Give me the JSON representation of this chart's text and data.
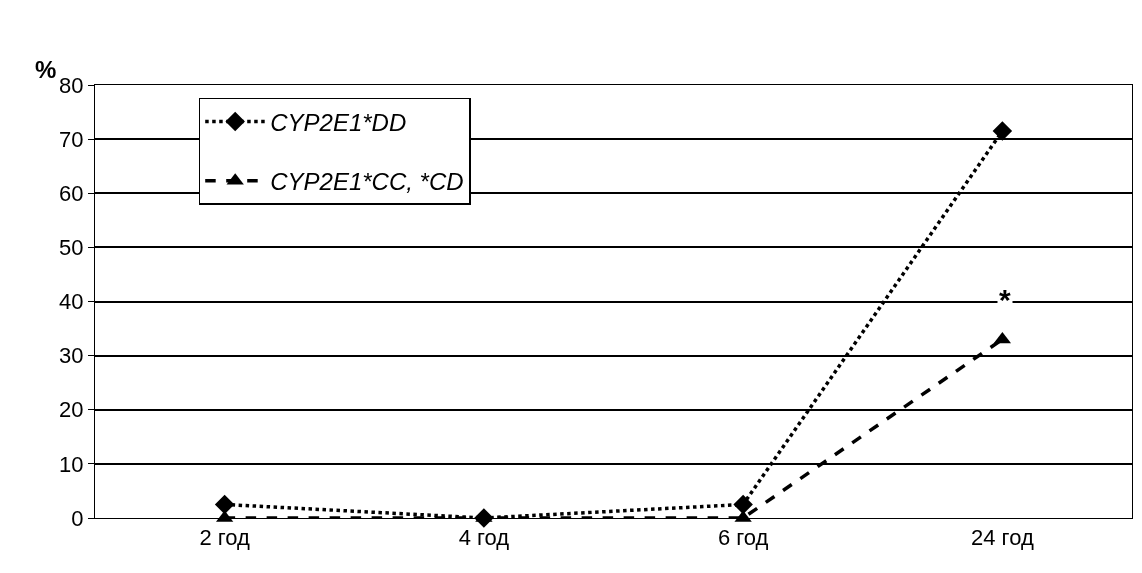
{
  "chart_data": {
    "type": "line",
    "ylabel": "%",
    "categories": [
      "2 год",
      "4 год",
      "6 год",
      "24 год"
    ],
    "series": [
      {
        "name": "CYP2E1*DD",
        "color": "#000000",
        "values": [
          2.5,
          0,
          2.5,
          71.5
        ],
        "marker": "diamond",
        "line_style": "dotted"
      },
      {
        "name": "CYP2E1*CC, *CD",
        "color": "#000000",
        "values": [
          0,
          0,
          0,
          33
        ],
        "marker": "triangle",
        "line_style": "dashed"
      }
    ],
    "ylim": [
      0,
      80
    ],
    "yticks": [
      0,
      10,
      20,
      30,
      40,
      50,
      60,
      70,
      80
    ],
    "grid": "y",
    "legend": "top left",
    "annotations": [
      "*"
    ]
  }
}
